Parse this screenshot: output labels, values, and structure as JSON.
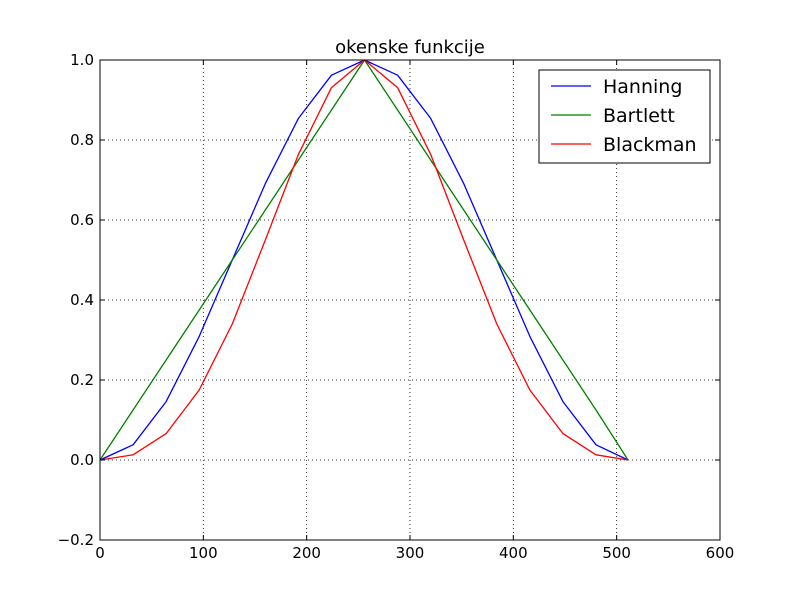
{
  "chart_data": {
    "type": "line",
    "title": "okenske funkcije",
    "xlabel": "",
    "ylabel": "",
    "xlim": [
      0,
      600
    ],
    "ylim": [
      -0.2,
      1.0
    ],
    "x_ticks": [
      "0",
      "100",
      "200",
      "300",
      "400",
      "500",
      "600"
    ],
    "y_ticks": [
      "−0.2",
      "0.0",
      "0.2",
      "0.4",
      "0.6",
      "0.8",
      "1.0"
    ],
    "grid": true,
    "legend_position": "top-right",
    "x": [
      0,
      32,
      64,
      96,
      128,
      160,
      192,
      224,
      256,
      288,
      320,
      352,
      384,
      416,
      448,
      480,
      511
    ],
    "series": [
      {
        "name": "Hanning",
        "color": "#0000ff",
        "values": [
          0.0,
          0.038,
          0.146,
          0.309,
          0.5,
          0.691,
          0.854,
          0.962,
          1.0,
          0.962,
          0.854,
          0.691,
          0.5,
          0.309,
          0.146,
          0.038,
          0.0
        ]
      },
      {
        "name": "Bartlett",
        "color": "#008000",
        "values": [
          0.0,
          0.125,
          0.25,
          0.375,
          0.5,
          0.625,
          0.75,
          0.875,
          1.0,
          0.875,
          0.75,
          0.625,
          0.5,
          0.375,
          0.25,
          0.125,
          0.0
        ]
      },
      {
        "name": "Blackman",
        "color": "#ff0000",
        "values": [
          0.0,
          0.013,
          0.066,
          0.175,
          0.34,
          0.55,
          0.764,
          0.931,
          1.0,
          0.931,
          0.764,
          0.55,
          0.34,
          0.175,
          0.066,
          0.013,
          0.0
        ]
      }
    ]
  }
}
